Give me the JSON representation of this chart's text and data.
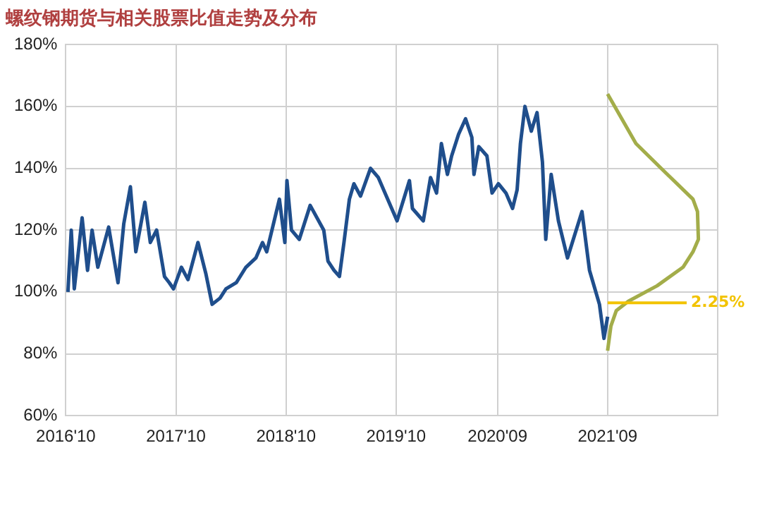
{
  "chart_data": {
    "type": "line",
    "title": "螺纹钢期货与相关股票比值走势及分布",
    "xlim": [
      "2016-10-01",
      "2022-09-01"
    ],
    "xticks": [
      {
        "value": "2016-10-01",
        "label": "2016'10"
      },
      {
        "value": "2017-10-01",
        "label": "2017'10"
      },
      {
        "value": "2018-10-01",
        "label": "2018'10"
      },
      {
        "value": "2019-10-01",
        "label": "2019'10"
      },
      {
        "value": "2020-09-01",
        "label": "2020'09"
      },
      {
        "value": "2021-09-01",
        "label": "2021'09"
      },
      {
        "value": "2022-09-01",
        "label": null
      }
    ],
    "ylim": [
      60,
      180
    ],
    "yticks": [
      {
        "value": 60,
        "label": "60%"
      },
      {
        "value": 80,
        "label": "80%"
      },
      {
        "value": 100,
        "label": "100%"
      },
      {
        "value": 120,
        "label": "120%"
      },
      {
        "value": 140,
        "label": "140%"
      },
      {
        "value": 160,
        "label": "160%"
      },
      {
        "value": 180,
        "label": "180%"
      }
    ],
    "grid": true,
    "legend": false,
    "marker": "none",
    "line_style": "solid",
    "series": [
      {
        "color": "#1f4e8c",
        "x": [
          "2016-10-08",
          "2016-10-19",
          "2016-10-29",
          "2016-11-24",
          "2016-12-12",
          "2016-12-27",
          "2017-01-15",
          "2017-02-20",
          "2017-03-23",
          "2017-04-11",
          "2017-05-03",
          "2017-05-21",
          "2017-06-20",
          "2017-07-08",
          "2017-07-29",
          "2017-08-24",
          "2017-09-09",
          "2017-09-23",
          "2017-10-19",
          "2017-11-10",
          "2017-12-13",
          "2018-01-08",
          "2018-01-29",
          "2018-02-24",
          "2018-03-16",
          "2018-04-19",
          "2018-05-21",
          "2018-06-23",
          "2018-07-15",
          "2018-07-29",
          "2018-09-09",
          "2018-09-27",
          "2018-10-04",
          "2018-10-19",
          "2018-11-14",
          "2018-12-20",
          "2019-02-03",
          "2019-02-17",
          "2019-03-09",
          "2019-03-27",
          "2019-04-11",
          "2019-04-29",
          "2019-05-14",
          "2019-06-05",
          "2019-07-08",
          "2019-08-03",
          "2019-08-25",
          "2019-10-04",
          "2019-11-14",
          "2019-11-24",
          "2019-12-30",
          "2020-01-23",
          "2020-02-12",
          "2020-02-28",
          "2020-03-19",
          "2020-04-02",
          "2020-04-25",
          "2020-05-18",
          "2020-06-08",
          "2020-06-15",
          "2020-07-01",
          "2020-07-28",
          "2020-08-14",
          "2020-09-04",
          "2020-09-29",
          "2020-10-21",
          "2020-11-05",
          "2020-11-16",
          "2020-12-01",
          "2020-12-22",
          "2021-01-10",
          "2021-01-28",
          "2021-02-08",
          "2021-02-26",
          "2021-03-22",
          "2021-04-21",
          "2021-06-08",
          "2021-07-03",
          "2021-07-21",
          "2021-08-05",
          "2021-08-20",
          "2021-09-01"
        ],
        "values": [
          100,
          120,
          101,
          124,
          107,
          120,
          108,
          121,
          103,
          122,
          134,
          113,
          129,
          116,
          120,
          105,
          103,
          101,
          108,
          104,
          116,
          106,
          96,
          98,
          101,
          103,
          108,
          111,
          116,
          113,
          130,
          116,
          136,
          120,
          117,
          128,
          120,
          110,
          107,
          105,
          116,
          130,
          135,
          131,
          140,
          137,
          132,
          123,
          136,
          127,
          123,
          137,
          132,
          148,
          138,
          144,
          151,
          156,
          150,
          138,
          147,
          144,
          132,
          135,
          132,
          127,
          133,
          148,
          160,
          152,
          158,
          142,
          117,
          138,
          123,
          111,
          126,
          107,
          101,
          96,
          85,
          92
        ]
      },
      {
        "color": "#a3ad4a",
        "x": [
          "2021-09-01",
          "2021-12-04",
          "2022-03-08",
          "2022-06-11",
          "2022-06-26",
          "2022-06-29",
          "2022-06-11",
          "2022-05-09",
          "2022-02-12",
          "2021-11-09",
          "2021-09-30",
          "2021-09-12",
          "2021-09-01"
        ],
        "values": [
          164,
          148,
          139,
          130,
          126,
          117,
          113,
          108,
          102,
          97,
          94,
          89,
          81
        ]
      }
    ],
    "ref_lines": [
      {
        "axis": "y",
        "value": 96.5,
        "color": "#f2c300"
      }
    ],
    "annotations": [
      "2.25%"
    ]
  }
}
